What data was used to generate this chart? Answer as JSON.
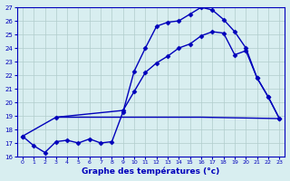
{
  "xlabel": "Graphe des températures (°c)",
  "xlim": [
    -0.5,
    23.5
  ],
  "ylim": [
    16,
    27
  ],
  "yticks": [
    16,
    17,
    18,
    19,
    20,
    21,
    22,
    23,
    24,
    25,
    26,
    27
  ],
  "xticks": [
    0,
    1,
    2,
    3,
    4,
    5,
    6,
    7,
    8,
    9,
    10,
    11,
    12,
    13,
    14,
    15,
    16,
    17,
    18,
    19,
    20,
    21,
    22,
    23
  ],
  "line_color": "#0000bb",
  "bg_color": "#d8eef0",
  "grid_color": "#b0cccc",
  "curve1_x": [
    0,
    1,
    2,
    3,
    4,
    5,
    6,
    7,
    8,
    9,
    10,
    11,
    12,
    13,
    14,
    15,
    16,
    17,
    18,
    19,
    20,
    21,
    22,
    23
  ],
  "curve1_y": [
    17.5,
    16.8,
    16.3,
    17.1,
    17.2,
    17.0,
    17.3,
    17.0,
    17.1,
    19.3,
    22.3,
    24.0,
    25.6,
    25.9,
    26.0,
    26.5,
    27.0,
    26.8,
    26.1,
    25.2,
    24.0,
    21.8,
    20.4,
    18.8
  ],
  "curve2_x": [
    0,
    3,
    9,
    10,
    11,
    12,
    13,
    14,
    15,
    16,
    17,
    18,
    19,
    20,
    21,
    22,
    23
  ],
  "curve2_y": [
    17.5,
    18.9,
    19.4,
    20.8,
    22.2,
    22.9,
    23.4,
    24.0,
    24.3,
    24.9,
    25.2,
    25.1,
    23.5,
    23.8,
    21.8,
    20.4,
    18.8
  ],
  "curve3_x": [
    3,
    16,
    23
  ],
  "curve3_y": [
    18.9,
    18.9,
    18.8
  ],
  "marker_size": 2.5,
  "line_width": 1.0
}
